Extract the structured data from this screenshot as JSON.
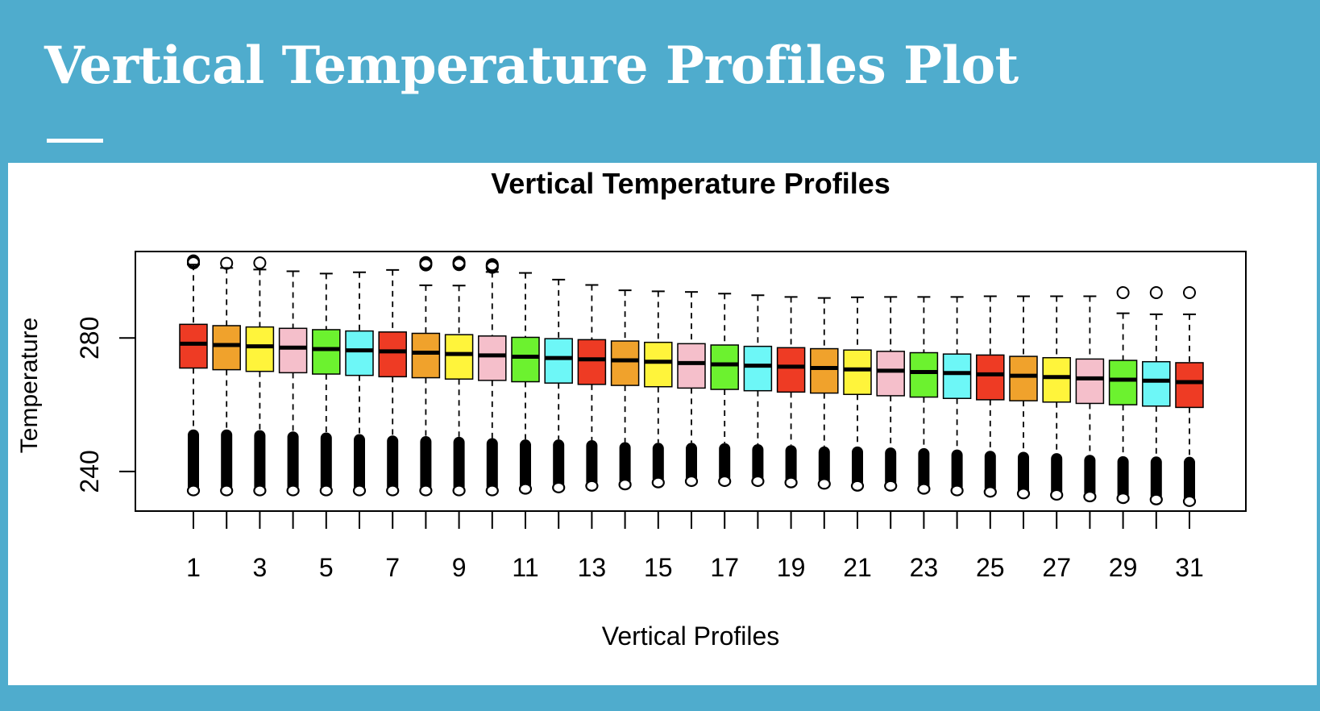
{
  "slide": {
    "title": "Vertical Temperature Profiles Plot"
  },
  "colors": {
    "background": "#4FACCD",
    "panel": "#FFFFFF",
    "box_cycle": [
      "#EE3B24",
      "#F0A22C",
      "#FFF43B",
      "#F5BFCB",
      "#6CF22F",
      "#6DF7F7"
    ]
  },
  "chart_data": {
    "type": "boxplot",
    "title": "Vertical Temperature Profiles",
    "xlabel": "Vertical Profiles",
    "ylabel": "Temperature",
    "ylim": [
      228,
      306
    ],
    "y_ticks": [
      240,
      280
    ],
    "x_tick_labels": [
      "1",
      "3",
      "5",
      "7",
      "9",
      "11",
      "13",
      "15",
      "17",
      "19",
      "21",
      "23",
      "25",
      "27",
      "29",
      "31"
    ],
    "categories": [
      1,
      2,
      3,
      4,
      5,
      6,
      7,
      8,
      9,
      10,
      11,
      12,
      13,
      14,
      15,
      16,
      17,
      18,
      19,
      20,
      21,
      22,
      23,
      24,
      25,
      26,
      27,
      28,
      29,
      30,
      31
    ],
    "series": [
      {
        "q1": [
          271.0,
          270.5,
          270.0,
          269.6,
          269.2,
          268.8,
          268.4,
          268.1,
          267.7,
          267.3,
          266.9,
          266.5,
          266.1,
          265.8,
          265.4,
          265.0,
          264.6,
          264.2,
          263.8,
          263.5,
          263.1,
          262.7,
          262.3,
          261.9,
          261.5,
          261.2,
          260.8,
          260.4,
          260.0,
          259.6,
          259.2
        ],
        "median": [
          278.3,
          277.9,
          277.5,
          277.1,
          276.7,
          276.3,
          276.0,
          275.6,
          275.2,
          274.8,
          274.4,
          274.0,
          273.6,
          273.3,
          272.9,
          272.5,
          272.1,
          271.7,
          271.4,
          271.0,
          270.6,
          270.2,
          269.8,
          269.5,
          269.1,
          268.7,
          268.3,
          267.9,
          267.5,
          267.2,
          266.8
        ],
        "q3": [
          284.1,
          283.7,
          283.3,
          282.9,
          282.5,
          282.1,
          281.8,
          281.4,
          281.0,
          280.6,
          280.2,
          279.8,
          279.5,
          279.1,
          278.7,
          278.3,
          277.9,
          277.5,
          277.1,
          276.8,
          276.4,
          276.0,
          275.6,
          275.2,
          274.9,
          274.5,
          274.1,
          273.7,
          273.3,
          272.9,
          272.6
        ],
        "whisker_high": [
          302.0,
          301.0,
          300.5,
          300.0,
          299.3,
          299.7,
          300.4,
          295.8,
          295.7,
          299.8,
          299.5,
          297.5,
          295.9,
          294.3,
          294.0,
          293.8,
          293.3,
          292.8,
          292.3,
          292.0,
          292.2,
          292.3,
          292.3,
          292.3,
          292.5,
          292.5,
          292.5,
          292.5,
          287.4,
          287.1,
          287.1
        ],
        "whisker_low": [
          252.6,
          252.6,
          252.4,
          252.0,
          251.7,
          251.2,
          250.8,
          250.6,
          250.4,
          250.0,
          249.6,
          249.6,
          249.4,
          248.8,
          248.6,
          248.6,
          248.5,
          248.2,
          247.9,
          247.5,
          247.5,
          247.2,
          247.0,
          246.6,
          246.2,
          245.9,
          245.5,
          245.0,
          244.6,
          244.5,
          244.4
        ],
        "outliers_high": [
          [
            302.5,
            302.8,
            303.1
          ],
          [
            302.4
          ],
          [
            302.5
          ],
          [],
          [],
          [],
          [],
          [
            301.9,
            302.3,
            302.6
          ],
          [
            302.0,
            302.4,
            302.7
          ],
          [
            301.2,
            301.6,
            302.0
          ],
          [],
          [],
          [],
          [],
          [],
          [],
          [],
          [],
          [],
          [],
          [],
          [],
          [],
          [],
          [],
          [],
          [],
          [],
          [
            293.6
          ],
          [
            293.6
          ],
          [
            293.6
          ]
        ],
        "outliers_low": [
          233.8,
          233.8,
          233.8,
          233.8,
          233.8,
          233.8,
          233.8,
          233.8,
          233.8,
          233.8,
          234.3,
          234.7,
          235.2,
          235.6,
          236.2,
          236.6,
          236.6,
          236.6,
          236.2,
          235.8,
          235.2,
          235.2,
          234.3,
          233.8,
          233.4,
          232.9,
          232.5,
          232.0,
          231.5,
          231.1,
          230.6
        ]
      }
    ],
    "grid": false
  }
}
